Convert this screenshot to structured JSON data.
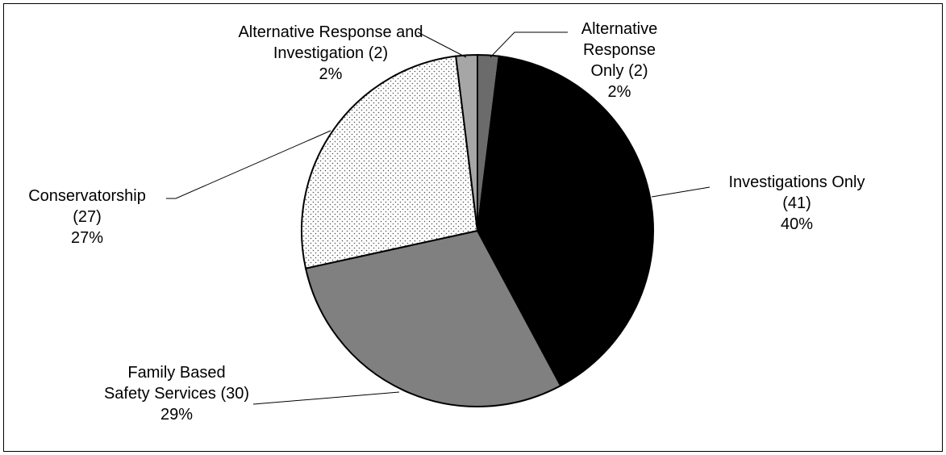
{
  "chart_data": {
    "type": "pie",
    "title": "",
    "start": "top",
    "direction": "clockwise",
    "slices": [
      {
        "category": "Alternative Response Only",
        "count": 2,
        "percent": 2,
        "fill": "#6b6b6b",
        "label": [
          "Alternative",
          "Response",
          "Only (2)",
          "2%"
        ]
      },
      {
        "category": "Investigations Only",
        "count": 41,
        "percent": 40,
        "fill": "#000000",
        "label": [
          "Investigations Only",
          "(41)",
          "40%"
        ]
      },
      {
        "category": "Family Based Safety Services",
        "count": 30,
        "percent": 29,
        "fill": "#808080",
        "label": [
          "Family Based",
          "Safety Services (30)",
          "29%"
        ]
      },
      {
        "category": "Conservatorship",
        "count": 27,
        "percent": 27,
        "fill": "#ffffff",
        "pattern": "dotted",
        "label": [
          "Conservatorship",
          "(27)",
          "27%"
        ]
      },
      {
        "category": "Alternative Response and Investigation",
        "count": 2,
        "percent": 2,
        "fill": "#a6a6a6",
        "label": [
          "Alternative Response and",
          "Investigation (2)",
          "2%"
        ]
      }
    ]
  }
}
